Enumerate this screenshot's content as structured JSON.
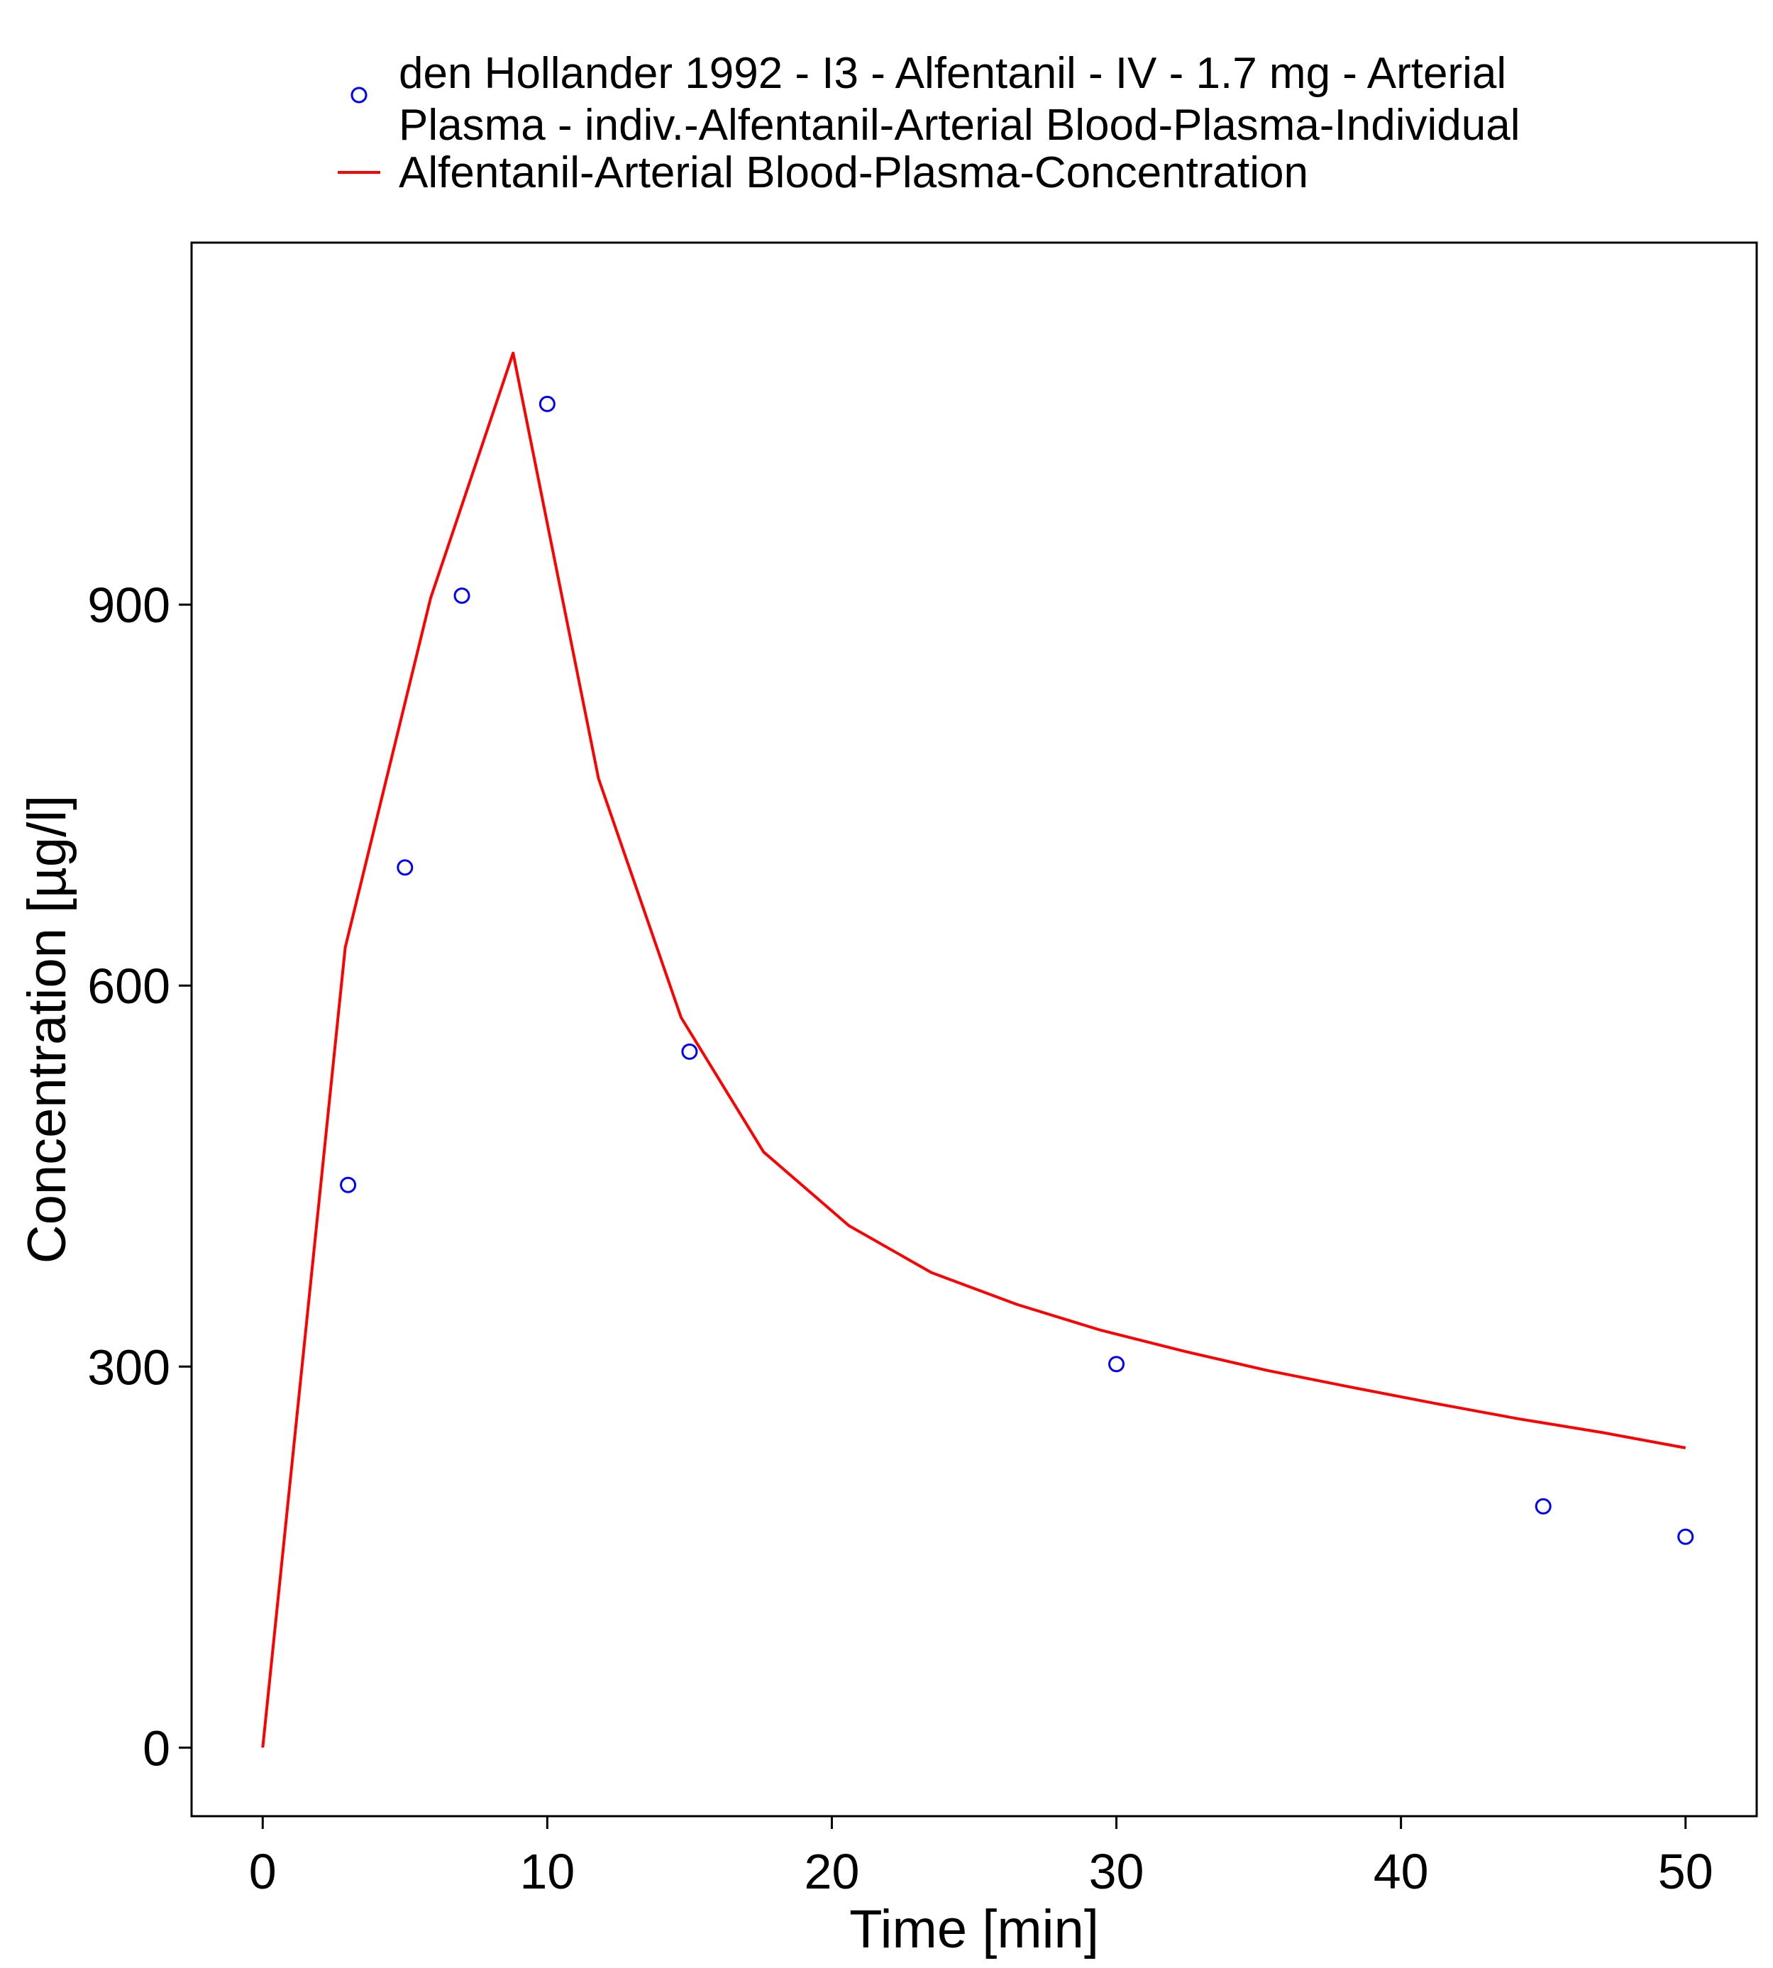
{
  "chart_data": {
    "type": "line",
    "title": "",
    "xlabel": "Time [min]",
    "ylabel": "Concentration [µg/l]",
    "xlim": [
      -2.5,
      52.5
    ],
    "ylim": [
      -54,
      1185
    ],
    "xticks": [
      0,
      10,
      20,
      30,
      40,
      50
    ],
    "yticks": [
      0,
      300,
      600,
      900
    ],
    "grid": false,
    "legend_placement": "top",
    "series": [
      {
        "name": "den Hollander 1992 - I3 - Alfentanil - IV - 1.7 mg - Arterial Plasma - indiv.-Alfentanil-Arterial Blood-Plasma-Individual",
        "legend_lines": [
          "den Hollander 1992 - I3 - Alfentanil - IV - 1.7 mg - Arterial",
          "Plasma - indiv.-Alfentanil-Arterial Blood-Plasma-Individual"
        ],
        "kind": "scatter",
        "marker": "open-circle",
        "color": "#0000ff",
        "x": [
          3,
          5,
          7,
          10,
          15,
          30,
          45,
          50
        ],
        "y": [
          443,
          693,
          907,
          1058,
          548,
          302,
          190,
          166
        ]
      },
      {
        "name": "Alfentanil-Arterial Blood-Plasma-Concentration",
        "legend_lines": [
          "Alfentanil-Arterial Blood-Plasma-Concentration"
        ],
        "kind": "line",
        "color": "#ff0000",
        "x": [
          0,
          2.9,
          5.9,
          8.8,
          11.8,
          14.7,
          17.6,
          20.6,
          23.5,
          26.5,
          29.4,
          32.4,
          35.3,
          38.2,
          41.2,
          44.1,
          47.1,
          50
        ],
        "y": [
          0,
          630,
          905,
          1098,
          763,
          575,
          469,
          411,
          374,
          349,
          329,
          312,
          297,
          284,
          271,
          259,
          248,
          236
        ]
      }
    ]
  }
}
